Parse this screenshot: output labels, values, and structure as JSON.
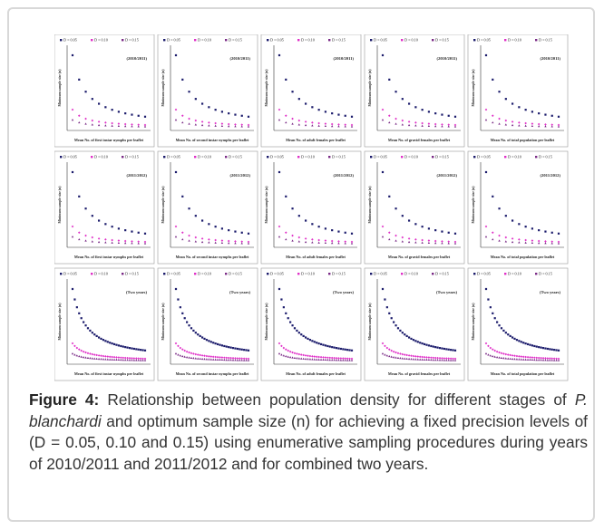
{
  "figure": {
    "legend": [
      "D = 0.05",
      "D = 0.10",
      "D = 0.15"
    ],
    "periods": [
      "(2010/2011)",
      "(2011/2012)",
      "(Two years)"
    ],
    "y_label": "Minimum sample size (n)",
    "x_labels": [
      "Mean No. of first instar nymphs per leaflet",
      "Mean No. of second instar nymphs per leaflet",
      "Mean No. of adult females per leaflet",
      "Mean No. of gravid females per leaflet",
      "Mean No. of total population per leaflet"
    ]
  },
  "caption": {
    "label": "Figure 4:",
    "text_before": "Relationship between population density for different stages of",
    "species": "P. blanchardi",
    "text_after": "and optimum sample size (n) for achieving a fixed precision levels of (D = 0.05, 0.10 and 0.15) using enumerative sampling procedures during years of 2010/2011 and 2011/2012 and for combined two years."
  }
}
